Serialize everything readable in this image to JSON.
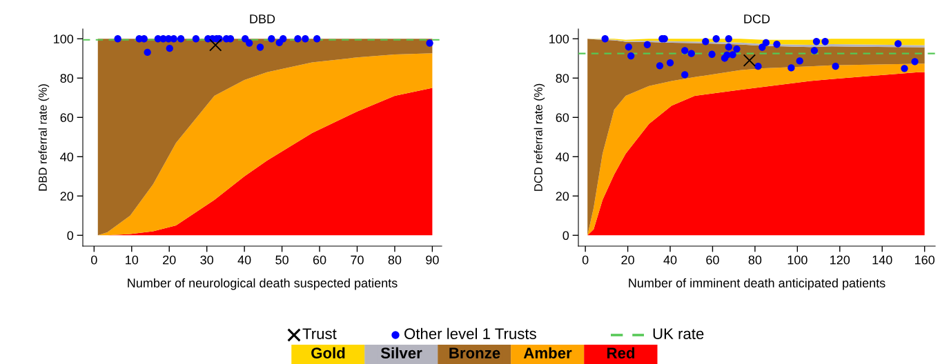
{
  "chart_data": [
    {
      "type": "area",
      "stacked": true,
      "title": "DBD",
      "xlabel": "Number of neurological death suspected patients",
      "ylabel": "DBD referral rate (%)",
      "xlim": [
        -3,
        92.5
      ],
      "xticks": [
        0,
        10,
        20,
        30,
        40,
        50,
        60,
        70,
        80,
        90
      ],
      "ylim": [
        -5.5,
        105
      ],
      "yticks": [
        0,
        20,
        40,
        60,
        80,
        100
      ],
      "grid": false,
      "legend": "bottom",
      "series": [
        {
          "name": "Red",
          "color": "#ff0000",
          "x": [
            1,
            3.5,
            9.6,
            15.7,
            21.8,
            32,
            40,
            46,
            58,
            70,
            80,
            90
          ],
          "values": [
            0,
            0,
            0.6,
            2,
            5,
            18,
            30,
            38,
            52,
            63,
            71,
            75
          ]
        },
        {
          "name": "Amber",
          "color": "#ffa500",
          "x": [
            1,
            3.5,
            9.6,
            15.7,
            21.8,
            32,
            40,
            46,
            58,
            70,
            80,
            90
          ],
          "values": [
            0,
            1.5,
            9.4,
            24,
            42,
            53,
            49,
            45,
            36,
            27.5,
            21,
            17.6
          ]
        },
        {
          "name": "Bronze",
          "color": "#a56b23",
          "x": [
            1,
            3.5,
            9.6,
            15.7,
            21.8,
            32,
            40,
            46,
            58,
            70,
            80,
            90
          ],
          "values": [
            100,
            98.5,
            90,
            74,
            53,
            29,
            21,
            17,
            12,
            9.5,
            8,
            7.4
          ]
        },
        {
          "name": "Trust",
          "type": "scatter",
          "marker": "cross",
          "color": "#000000",
          "x": [
            32.3
          ],
          "values": [
            96.8
          ]
        },
        {
          "name": "Other level 1 Trusts",
          "type": "scatter",
          "marker": "circle",
          "color": "#0000ff",
          "x": [
            6.3,
            12.0,
            13.3,
            17.0,
            18.4,
            19.8,
            21.2,
            23.1,
            27.1,
            30.3,
            31.5,
            32.6,
            33.3,
            35.2,
            36.3,
            40.2,
            47.2,
            50.3,
            54.2,
            56.2,
            59.3,
            14.2,
            20.1,
            41.3,
            44.2,
            49.3,
            89.3
          ],
          "values": [
            100,
            100,
            100,
            100,
            100,
            100,
            100,
            100,
            100,
            100,
            100,
            100,
            100,
            100,
            100,
            100,
            100,
            100,
            100,
            100,
            100,
            93.1,
            95.1,
            97.8,
            95.7,
            98.0,
            97.8
          ]
        }
      ],
      "ref_lines": [
        {
          "axis": "y",
          "value": 99.5,
          "label": "UK rate",
          "color": "#55c855",
          "line_style": "dashed"
        }
      ]
    },
    {
      "type": "area",
      "stacked": true,
      "title": "DCD",
      "xlabel": "Number of imminent death anticipated patients",
      "ylabel": "DCD referral rate (%)",
      "xlim": [
        -3.3,
        165
      ],
      "xticks": [
        0,
        20,
        40,
        60,
        80,
        100,
        120,
        140,
        160
      ],
      "ylim": [
        -5.5,
        105
      ],
      "yticks": [
        0,
        20,
        40,
        60,
        80,
        100
      ],
      "grid": false,
      "legend": "bottom",
      "series": [
        {
          "name": "Red",
          "color": "#ff0000",
          "x": [
            1,
            3.9,
            8.1,
            13.6,
            19,
            30,
            40.7,
            51.6,
            73,
            84,
            106,
            116,
            157,
            160
          ],
          "values": [
            0,
            3,
            18,
            31,
            41.5,
            56.7,
            66,
            71,
            74,
            75.5,
            78.5,
            79.5,
            83,
            83
          ]
        },
        {
          "name": "Amber",
          "color": "#ffa500",
          "x": [
            1,
            3.9,
            8.1,
            13.6,
            19,
            30,
            40.7,
            51.6,
            73,
            84,
            106,
            116,
            157,
            160
          ],
          "values": [
            0,
            11,
            23.5,
            33,
            29.5,
            19.3,
            12.5,
            9.5,
            10,
            9.5,
            7.5,
            7,
            4.3,
            4.4
          ]
        },
        {
          "name": "Bronze",
          "color": "#a56b23",
          "x": [
            1,
            3.9,
            8.1,
            13.6,
            19,
            30,
            40.7,
            51.6,
            73,
            84,
            106,
            116,
            157,
            160
          ],
          "values": [
            100,
            85.7,
            58,
            35.2,
            27.5,
            22.3,
            19.5,
            17.3,
            13.1,
            11.4,
            9.8,
            9.6,
            8.4,
            8.2
          ]
        },
        {
          "name": "Silver",
          "color": "#b4b4bf",
          "x": [
            1,
            3.9,
            8.1,
            13.6,
            19,
            30,
            40.7,
            51.6,
            73,
            84,
            106,
            116,
            157,
            160
          ],
          "values": [
            0,
            0.2,
            0.3,
            0.4,
            0.4,
            0.7,
            0.8,
            0.8,
            1.0,
            1.0,
            1.1,
            1.2,
            1.1,
            1.2
          ]
        },
        {
          "name": "Gold",
          "color": "#ffd700",
          "x": [
            1,
            3.9,
            8.1,
            13.6,
            19,
            30,
            40.7,
            51.6,
            73,
            84,
            106,
            116,
            157,
            160
          ],
          "values": [
            0,
            0.1,
            0.2,
            0.4,
            0.6,
            1.0,
            1.2,
            1.4,
            1.9,
            2.1,
            2.6,
            2.7,
            3.2,
            3.2
          ]
        },
        {
          "name": "Trust",
          "type": "scatter",
          "marker": "cross",
          "color": "#000000",
          "x": [
            77.4
          ],
          "values": [
            89.0
          ]
        },
        {
          "name": "Other level 1 Trusts",
          "type": "scatter",
          "marker": "circle",
          "color": "#0000ff",
          "x": [
            9.3,
            20.4,
            21.5,
            29.2,
            35.1,
            36.2,
            37.3,
            40,
            46.9,
            46.9,
            50,
            56.7,
            59.7,
            61.7,
            65.7,
            66.8,
            67.6,
            67.6,
            69.5,
            71.4,
            81.5,
            83.4,
            85.2,
            90.3,
            97.1,
            101.1,
            108,
            109,
            113.1,
            118,
            147.5,
            150.5,
            155.4
          ],
          "values": [
            100,
            95.8,
            91.3,
            97.0,
            86.3,
            100,
            100,
            87.8,
            94.0,
            81.7,
            92.5,
            98.6,
            92.1,
            100,
            90.1,
            91.7,
            100,
            95.8,
            91.9,
            94.8,
            86.0,
            95.7,
            98.0,
            97.2,
            85.2,
            88.7,
            94.0,
            98.6,
            98.6,
            86.0,
            97.5,
            84.9,
            88.4
          ]
        }
      ],
      "ref_lines": [
        {
          "axis": "y",
          "value": 92.5,
          "color": "#55c855",
          "line_style": "dashed"
        }
      ]
    }
  ]
}
